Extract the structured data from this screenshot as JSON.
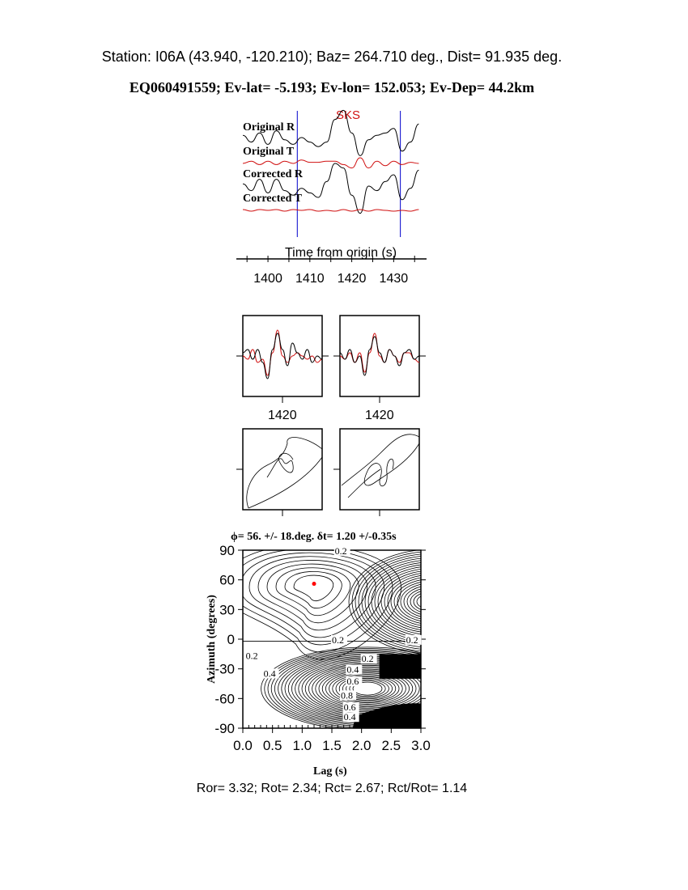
{
  "header": {
    "station_line": "Station: I06A (43.940, -120.210); Baz=  264.710 deg., Dist=   91.935 deg.",
    "event_line": "EQ060491559; Ev-lat=  -5.193; Ev-lon= 152.053; Ev-Dep= 44.2km"
  },
  "footer": {
    "ratios": "Ror= 3.32; Rot= 2.34; Rct= 2.67; Rct/Rot= 1.14"
  },
  "colors": {
    "radial": "#000000",
    "transverse": "#d01010",
    "window": "#0000cc",
    "best_fit": "#ff0000"
  },
  "chart_data": [
    {
      "type": "line",
      "panel": "seismograms",
      "xlabel": "Time from origin (s)",
      "xlim": [
        1394,
        1436.5
      ],
      "xticks": [
        "1400",
        "1410",
        "1420",
        "1430"
      ],
      "phase_label": "SKS",
      "window": [
        1407,
        1431.6
      ],
      "x": [
        1394,
        1396,
        1398,
        1400,
        1402,
        1404,
        1406,
        1408,
        1410,
        1412,
        1414,
        1416,
        1418,
        1420,
        1422,
        1424,
        1426,
        1428,
        1430,
        1432,
        1434,
        1436
      ],
      "series": [
        {
          "name": "Original R",
          "values": [
            0.1,
            -0.2,
            0.2,
            -0.3,
            0.3,
            -0.1,
            -0.3,
            0.0,
            -0.2,
            -0.4,
            -0.2,
            0.8,
            1.2,
            0.2,
            -0.8,
            -0.1,
            0.1,
            0.2,
            0.4,
            -0.6,
            -0.2,
            0.6
          ]
        },
        {
          "name": "Original T",
          "values": [
            0.0,
            0.2,
            -0.1,
            0.2,
            -0.1,
            0.2,
            0.0,
            0.3,
            0.1,
            0.1,
            0.2,
            0.2,
            -0.1,
            -0.4,
            0.5,
            -0.4,
            0.2,
            -0.2,
            0.2,
            -0.1,
            0.1,
            0.0
          ]
        },
        {
          "name": "Corrected R",
          "values": [
            0.1,
            -0.2,
            0.3,
            -0.3,
            0.3,
            -0.2,
            -0.4,
            -0.1,
            -0.3,
            -0.5,
            0.2,
            1.0,
            0.8,
            -0.4,
            -1.2,
            0.0,
            -0.2,
            0.2,
            0.5,
            -0.6,
            -0.1,
            0.7
          ]
        },
        {
          "name": "Corrected T",
          "values": [
            0.1,
            -0.1,
            0.1,
            0.0,
            0.1,
            -0.1,
            0.1,
            0.0,
            0.1,
            -0.1,
            0.0,
            -0.1,
            0.1,
            -0.1,
            0.1,
            -0.1,
            0.1,
            0.0,
            -0.1,
            0.0,
            -0.1,
            0.1
          ]
        }
      ]
    },
    {
      "type": "line",
      "panel": "fast-slow-waveforms",
      "xticks": [
        "1420",
        "1420"
      ],
      "x": [
        1412,
        1413,
        1414,
        1415,
        1416,
        1417,
        1418,
        1419,
        1420,
        1421,
        1422,
        1423,
        1424,
        1425,
        1426,
        1427,
        1428
      ],
      "left": {
        "black": [
          0.1,
          0.2,
          -0.1,
          0.2,
          -0.2,
          -0.7,
          0.2,
          0.7,
          0.2,
          -0.3,
          0.4,
          0.1,
          -0.1,
          0.2,
          -0.2,
          0.0,
          -0.1
        ],
        "red": [
          0.0,
          -0.1,
          0.2,
          -0.2,
          -0.1,
          -0.6,
          0.1,
          0.8,
          0.0,
          -0.2,
          0.0,
          0.1,
          0.0,
          -0.1,
          0.0,
          -0.2,
          -0.1
        ]
      },
      "right": {
        "black": [
          0.1,
          -0.1,
          0.2,
          -0.2,
          0.0,
          -0.6,
          0.2,
          0.6,
          0.1,
          -0.2,
          0.2,
          0.0,
          -0.3,
          0.1,
          0.2,
          -0.1,
          0.0
        ],
        "red": [
          0.0,
          -0.1,
          0.1,
          -0.2,
          0.1,
          -0.5,
          0.1,
          0.7,
          0.0,
          -0.2,
          0.2,
          0.0,
          -0.2,
          0.1,
          0.1,
          -0.1,
          -0.2
        ]
      }
    },
    {
      "type": "scatter",
      "panel": "particle-motion",
      "left_shape": "elliptical",
      "right_shape": "linearized"
    },
    {
      "type": "heatmap",
      "panel": "energy-grid",
      "title": "ϕ= 56. +/- 18.deg. δt= 1.20 +/-0.35s",
      "xlabel": "Lag (s)",
      "ylabel": "Azimuth (degrees)",
      "xlim": [
        0,
        3
      ],
      "ylim": [
        -90,
        90
      ],
      "xticks": [
        "0.0",
        "0.5",
        "1.0",
        "1.5",
        "2.0",
        "2.5",
        "3.0"
      ],
      "yticks": [
        "90",
        "60",
        "30",
        "0",
        "-30",
        "-60",
        "-90"
      ],
      "contour_labels": [
        "0.2",
        "0.2",
        "0.2",
        "0.2",
        "0.2",
        "0.4",
        "0.4",
        "0.6",
        "0.8",
        "0.6",
        "0.4"
      ],
      "best_fit": {
        "lag": 1.2,
        "azimuth": 56
      }
    }
  ]
}
